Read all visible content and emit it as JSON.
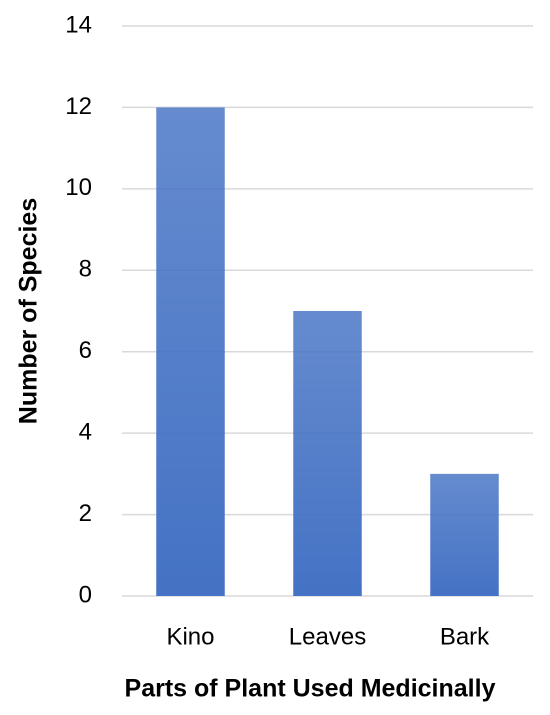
{
  "chart_data": {
    "type": "bar",
    "x_label": "Parts of Plant Used Medicinally",
    "y_label": "Number of Species",
    "categories": [
      "Kino",
      "Leaves",
      "Bark"
    ],
    "values": [
      12,
      7,
      3
    ],
    "color": "#4472c4",
    "ylim": [
      0,
      14
    ],
    "yticks": [
      0,
      2,
      4,
      6,
      8,
      10,
      12,
      14
    ],
    "grid": true
  }
}
